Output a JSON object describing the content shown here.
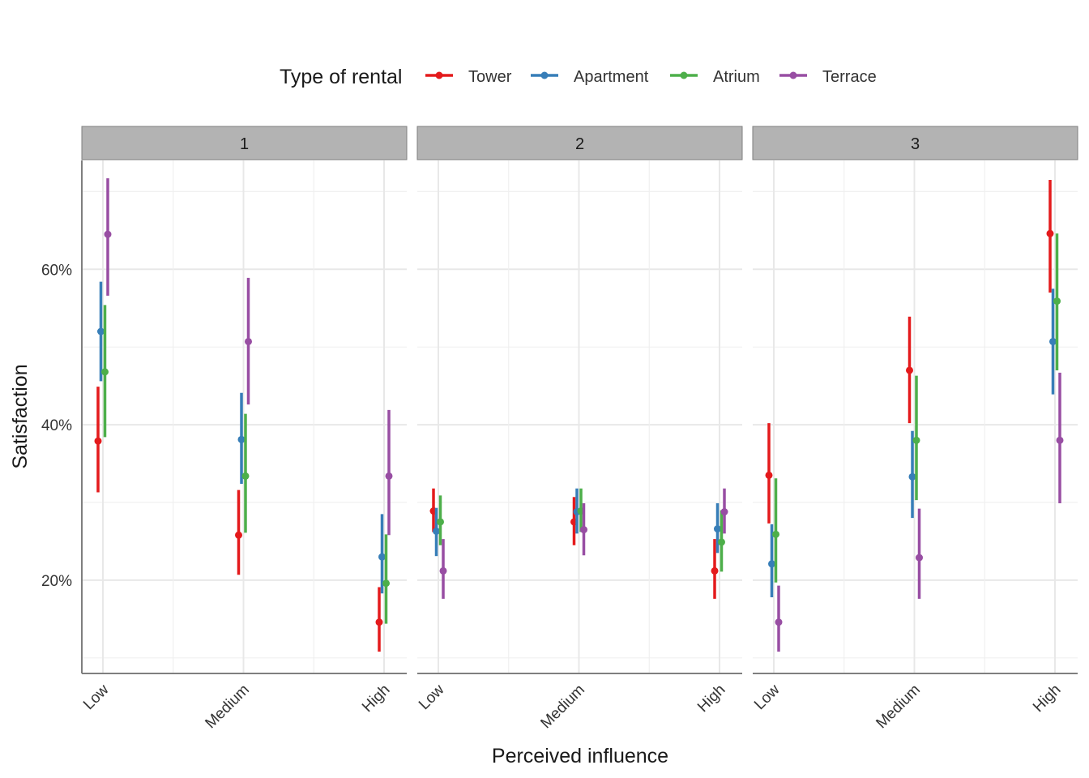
{
  "chart_data": {
    "type": "errorbar",
    "xlabel": "Perceived influence",
    "ylabel": "Satisfaction",
    "legend_title": "Type of rental",
    "legend_position": "top",
    "facets": [
      "1",
      "2",
      "3"
    ],
    "categories": [
      "Low",
      "Medium",
      "High"
    ],
    "y_ticks": [
      20,
      40,
      60
    ],
    "y_tick_labels": [
      "20%",
      "40%",
      "60%"
    ],
    "ylim": [
      8,
      74
    ],
    "grid": true,
    "series": [
      {
        "name": "Tower",
        "color": "#e41a1c",
        "panels": [
          {
            "points": [
              {
                "y": 37.9,
                "low": 31.3,
                "high": 44.9
              },
              {
                "y": 25.8,
                "low": 20.7,
                "high": 31.6
              },
              {
                "y": 14.6,
                "low": 10.8,
                "high": 19.1
              }
            ]
          },
          {
            "points": [
              {
                "y": 28.9,
                "low": 26.2,
                "high": 31.8
              },
              {
                "y": 27.5,
                "low": 24.5,
                "high": 30.7
              },
              {
                "y": 21.2,
                "low": 17.6,
                "high": 25.3
              }
            ]
          },
          {
            "points": [
              {
                "y": 33.5,
                "low": 27.3,
                "high": 40.2
              },
              {
                "y": 47.0,
                "low": 40.2,
                "high": 53.9
              },
              {
                "y": 64.6,
                "low": 57.0,
                "high": 71.5
              }
            ]
          }
        ]
      },
      {
        "name": "Apartment",
        "color": "#377eb8",
        "panels": [
          {
            "points": [
              {
                "y": 52.0,
                "low": 45.6,
                "high": 58.4
              },
              {
                "y": 38.1,
                "low": 32.4,
                "high": 44.1
              },
              {
                "y": 23.0,
                "low": 18.3,
                "high": 28.5
              }
            ]
          },
          {
            "points": [
              {
                "y": 26.3,
                "low": 23.1,
                "high": 29.3
              },
              {
                "y": 28.8,
                "low": 26.0,
                "high": 31.8
              },
              {
                "y": 26.6,
                "low": 23.5,
                "high": 29.9
              }
            ]
          },
          {
            "points": [
              {
                "y": 22.1,
                "low": 17.8,
                "high": 27.2
              },
              {
                "y": 33.3,
                "low": 28.0,
                "high": 39.2
              },
              {
                "y": 50.7,
                "low": 43.9,
                "high": 57.5
              }
            ]
          }
        ]
      },
      {
        "name": "Atrium",
        "color": "#4daf4a",
        "panels": [
          {
            "points": [
              {
                "y": 46.8,
                "low": 38.4,
                "high": 55.4
              },
              {
                "y": 33.4,
                "low": 26.1,
                "high": 41.4
              },
              {
                "y": 19.6,
                "low": 14.4,
                "high": 25.9
              }
            ]
          },
          {
            "points": [
              {
                "y": 27.5,
                "low": 24.5,
                "high": 30.9
              },
              {
                "y": 28.9,
                "low": 26.2,
                "high": 31.8
              },
              {
                "y": 24.9,
                "low": 21.1,
                "high": 29.0
              }
            ]
          },
          {
            "points": [
              {
                "y": 25.9,
                "low": 19.7,
                "high": 33.1
              },
              {
                "y": 38.0,
                "low": 30.3,
                "high": 46.3
              },
              {
                "y": 55.9,
                "low": 47.0,
                "high": 64.6
              }
            ]
          }
        ]
      },
      {
        "name": "Terrace",
        "color": "#984ea3",
        "panels": [
          {
            "points": [
              {
                "y": 64.5,
                "low": 56.6,
                "high": 71.7
              },
              {
                "y": 50.7,
                "low": 42.6,
                "high": 58.9
              },
              {
                "y": 33.4,
                "low": 25.8,
                "high": 41.9
              }
            ]
          },
          {
            "points": [
              {
                "y": 21.2,
                "low": 17.6,
                "high": 25.3
              },
              {
                "y": 26.5,
                "low": 23.2,
                "high": 29.9
              },
              {
                "y": 28.8,
                "low": 26.0,
                "high": 31.8
              }
            ]
          },
          {
            "points": [
              {
                "y": 14.6,
                "low": 10.8,
                "high": 19.3
              },
              {
                "y": 22.9,
                "low": 17.6,
                "high": 29.2
              },
              {
                "y": 38.0,
                "low": 29.9,
                "high": 46.7
              }
            ]
          }
        ]
      }
    ]
  }
}
